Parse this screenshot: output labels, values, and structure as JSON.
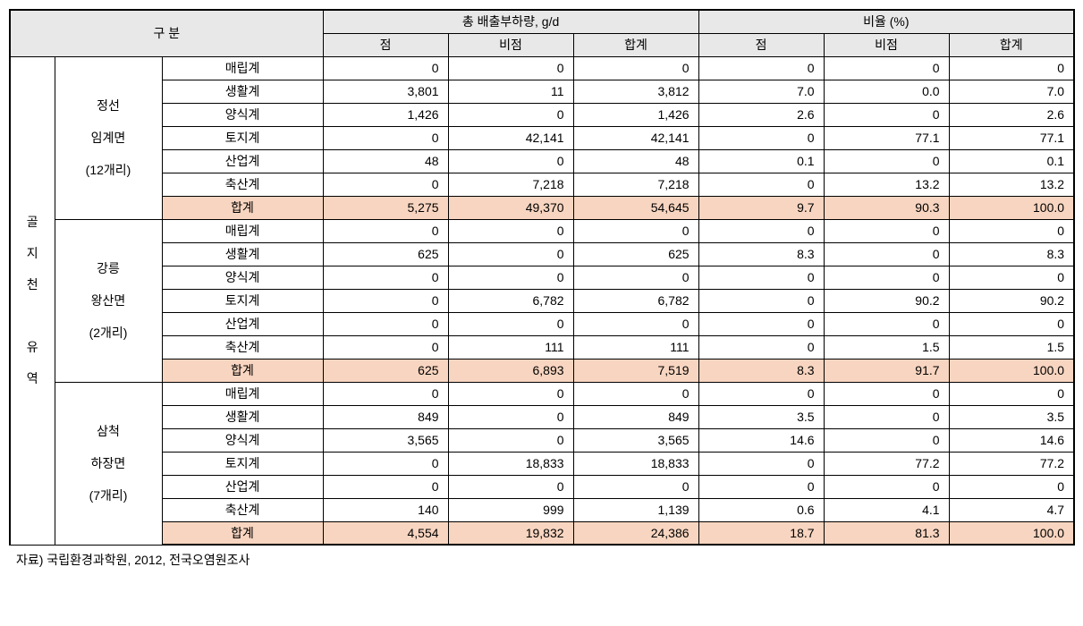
{
  "header": {
    "gubun": "구 분",
    "total_emission": "총   배출부하량, g/d",
    "ratio": "비율 (%)",
    "point": "점",
    "nonpoint": "비점",
    "subtotal": "합계"
  },
  "region_label": "골\n지\n천\n\n유\n역",
  "sections": [
    {
      "area_label": "정선\n임계면\n(12개리)",
      "rows": [
        {
          "cat": "매립계",
          "p": "0",
          "np": "0",
          "t": "0",
          "pp": "0",
          "npp": "0",
          "tp": "0"
        },
        {
          "cat": "생활계",
          "p": "3,801",
          "np": "11",
          "t": "3,812",
          "pp": "7.0",
          "npp": "0.0",
          "tp": "7.0"
        },
        {
          "cat": "양식계",
          "p": "1,426",
          "np": "0",
          "t": "1,426",
          "pp": "2.6",
          "npp": "0",
          "tp": "2.6"
        },
        {
          "cat": "토지계",
          "p": "0",
          "np": "42,141",
          "t": "42,141",
          "pp": "0",
          "npp": "77.1",
          "tp": "77.1"
        },
        {
          "cat": "산업계",
          "p": "48",
          "np": "0",
          "t": "48",
          "pp": "0.1",
          "npp": "0",
          "tp": "0.1"
        },
        {
          "cat": "축산계",
          "p": "0",
          "np": "7,218",
          "t": "7,218",
          "pp": "0",
          "npp": "13.2",
          "tp": "13.2"
        }
      ],
      "total": {
        "cat": "합계",
        "p": "5,275",
        "np": "49,370",
        "t": "54,645",
        "pp": "9.7",
        "npp": "90.3",
        "tp": "100.0"
      }
    },
    {
      "area_label": "강릉\n왕산면\n(2개리)",
      "rows": [
        {
          "cat": "매립계",
          "p": "0",
          "np": "0",
          "t": "0",
          "pp": "0",
          "npp": "0",
          "tp": "0"
        },
        {
          "cat": "생활계",
          "p": "625",
          "np": "0",
          "t": "625",
          "pp": "8.3",
          "npp": "0",
          "tp": "8.3"
        },
        {
          "cat": "양식계",
          "p": "0",
          "np": "0",
          "t": "0",
          "pp": "0",
          "npp": "0",
          "tp": "0"
        },
        {
          "cat": "토지계",
          "p": "0",
          "np": "6,782",
          "t": "6,782",
          "pp": "0",
          "npp": "90.2",
          "tp": "90.2"
        },
        {
          "cat": "산업계",
          "p": "0",
          "np": "0",
          "t": "0",
          "pp": "0",
          "npp": "0",
          "tp": "0"
        },
        {
          "cat": "축산계",
          "p": "0",
          "np": "111",
          "t": "111",
          "pp": "0",
          "npp": "1.5",
          "tp": "1.5"
        }
      ],
      "total": {
        "cat": "합계",
        "p": "625",
        "np": "6,893",
        "t": "7,519",
        "pp": "8.3",
        "npp": "91.7",
        "tp": "100.0"
      }
    },
    {
      "area_label": "삼척\n하장면\n(7개리)",
      "rows": [
        {
          "cat": "매립계",
          "p": "0",
          "np": "0",
          "t": "0",
          "pp": "0",
          "npp": "0",
          "tp": "0"
        },
        {
          "cat": "생활계",
          "p": "849",
          "np": "0",
          "t": "849",
          "pp": "3.5",
          "npp": "0",
          "tp": "3.5"
        },
        {
          "cat": "양식계",
          "p": "3,565",
          "np": "0",
          "t": "3,565",
          "pp": "14.6",
          "npp": "0",
          "tp": "14.6"
        },
        {
          "cat": "토지계",
          "p": "0",
          "np": "18,833",
          "t": "18,833",
          "pp": "0",
          "npp": "77.2",
          "tp": "77.2"
        },
        {
          "cat": "산업계",
          "p": "0",
          "np": "0",
          "t": "0",
          "pp": "0",
          "npp": "0",
          "tp": "0"
        },
        {
          "cat": "축산계",
          "p": "140",
          "np": "999",
          "t": "1,139",
          "pp": "0.6",
          "npp": "4.1",
          "tp": "4.7"
        }
      ],
      "total": {
        "cat": "합계",
        "p": "4,554",
        "np": "19,832",
        "t": "24,386",
        "pp": "18.7",
        "npp": "81.3",
        "tp": "100.0"
      }
    }
  ],
  "footnote": "자료) 국립환경과학원, 2012, 전국오염원조사",
  "colors": {
    "header_bg": "#e8e8e8",
    "highlight_bg": "#f8d5c0",
    "border": "#000000",
    "background": "#ffffff"
  }
}
